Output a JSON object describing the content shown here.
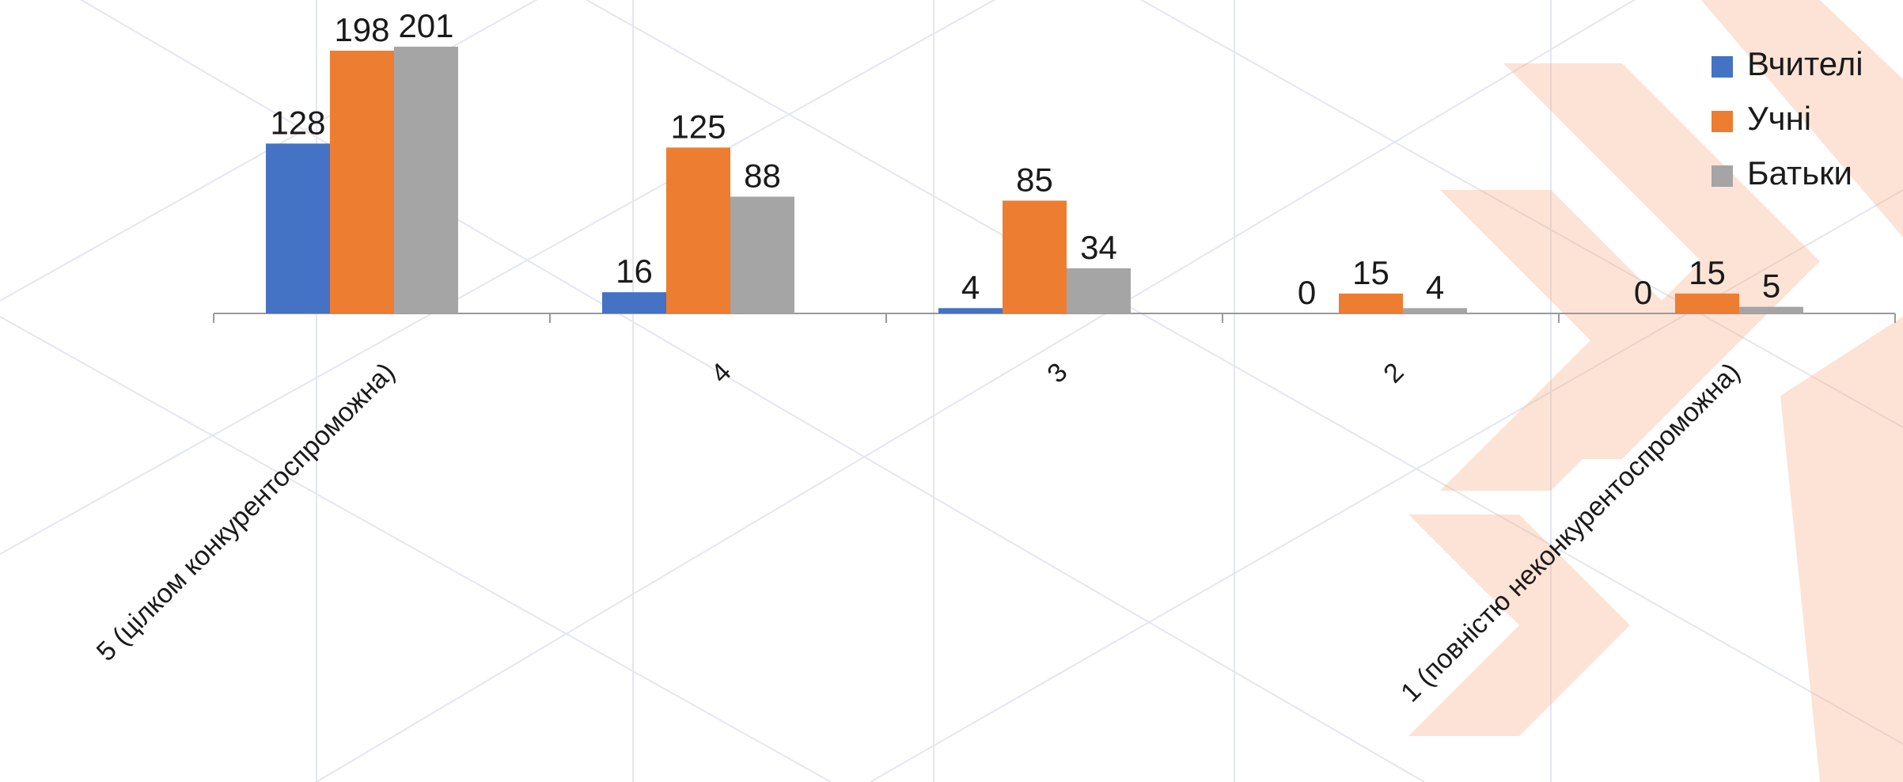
{
  "chart_data": {
    "type": "bar",
    "categories": [
      "5 (цілком конкурентоспроможна)",
      "4",
      "3",
      "2",
      "1 (повністю неконкурентоспроможна)"
    ],
    "series": [
      {
        "name": "Вчителі",
        "color": "#4472c4",
        "values": [
          128,
          16,
          4,
          0,
          0
        ]
      },
      {
        "name": "Учні",
        "color": "#ed7d31",
        "values": [
          198,
          125,
          85,
          15,
          15
        ]
      },
      {
        "name": "Батьки",
        "color": "#a5a5a5",
        "values": [
          201,
          88,
          34,
          4,
          5
        ]
      }
    ],
    "legend": "top-right"
  }
}
